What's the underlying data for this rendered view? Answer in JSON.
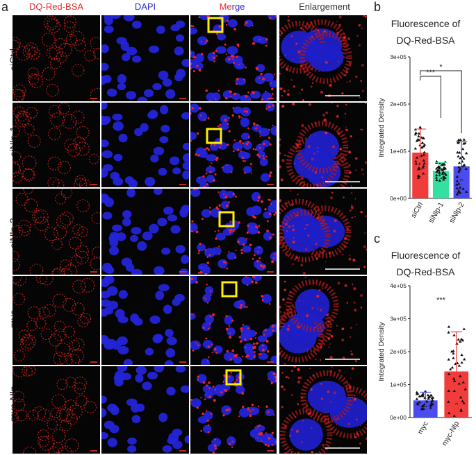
{
  "figure": {
    "panel_a": "a",
    "panel_b": "b",
    "panel_c": "c",
    "column_headers": [
      {
        "label": "DQ-Red-BSA",
        "color": "#e8262a"
      },
      {
        "label": "DAPI",
        "color": "#2b2bd6"
      },
      {
        "label": "Merge",
        "color_parts": [
          "#e8262a",
          "#2b2bd6"
        ]
      },
      {
        "label": "Enlargement",
        "color": "#333333"
      }
    ],
    "merge_part1": "Me",
    "merge_part2": "rge",
    "rows": [
      {
        "label": "siCtrl"
      },
      {
        "label": "siNlp-1"
      },
      {
        "label": "siNlp-2"
      },
      {
        "label": "myc"
      },
      {
        "label": "myc-Nlp"
      }
    ],
    "colors": {
      "red": "#e8262a",
      "blue": "#2b2bd6",
      "green": "#33e0a0",
      "yellow": "#ffee00",
      "white": "#ffffff"
    }
  },
  "chart_data": [
    {
      "type": "bar",
      "title": "Fluorescence of",
      "subtitle": "DQ-Red-BSA",
      "ylabel": "Integrated Density",
      "ylim": [
        0,
        300000
      ],
      "yticks": [
        "0e+00",
        "1e+05",
        "2e+05",
        "3e+05"
      ],
      "categories": [
        "siCtrl",
        "siNlp-1",
        "siNlp-2"
      ],
      "values": [
        97000,
        58000,
        68000
      ],
      "errors": [
        50000,
        18000,
        52000
      ],
      "bar_colors": [
        "#f23b3b",
        "#33e0a0",
        "#4b4bef"
      ],
      "significance": [
        {
          "from": 0,
          "to": 1,
          "label": "***"
        },
        {
          "from": 0,
          "to": 2,
          "label": "*"
        }
      ]
    },
    {
      "type": "bar",
      "title": "Fluorescence of",
      "subtitle": "DQ-Red-BSA",
      "ylabel": "Integrated Density",
      "ylim": [
        0,
        400000
      ],
      "yticks": [
        "0e+00",
        "1e+05",
        "2e+05",
        "3e+05",
        "4e+05"
      ],
      "categories": [
        "myc",
        "myc-Nlp"
      ],
      "values": [
        52000,
        140000
      ],
      "errors": [
        25000,
        120000
      ],
      "bar_colors": [
        "#4b4bef",
        "#f23b3b"
      ],
      "significance": [
        {
          "label": "***"
        }
      ]
    }
  ]
}
